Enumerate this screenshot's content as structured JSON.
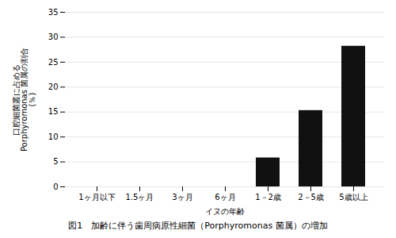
{
  "chart_data": {
    "type": "bar",
    "categories": [
      "1ヶ月以下",
      "1.5ヶ月",
      "3ヶ月",
      "6ヶ月",
      "1－2歳",
      "2－5歳",
      "5歳以上"
    ],
    "values": [
      0,
      0,
      0,
      0,
      5.8,
      15.3,
      28.2
    ],
    "color": "#111111",
    "xlabel": "イヌの年齢",
    "ylabel": "口腔細菌叢に占める\nPorphyromonas 菌属の割合\n(％)",
    "caption": "図1　加齢に伴う歯周病原性細菌（Porphyromonas 菌属）の増加",
    "ylim": [
      0,
      35
    ],
    "yticks": [
      0,
      5,
      10,
      15,
      20,
      25,
      30,
      35
    ],
    "grid": true
  }
}
